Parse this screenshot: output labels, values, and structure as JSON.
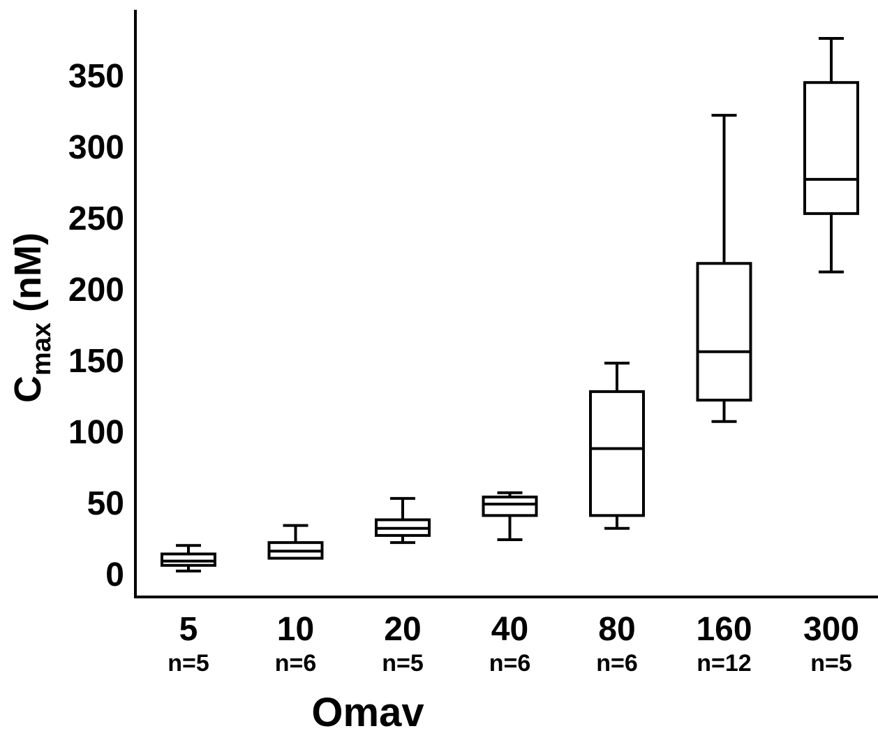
{
  "chart_data": {
    "type": "boxplot",
    "title": "",
    "ylabel": {
      "main": "C",
      "sub": "max",
      "unit": " (nM)"
    },
    "xlabel": "Omav",
    "ylim": [
      0,
      370
    ],
    "yticks": [
      0,
      50,
      100,
      150,
      200,
      250,
      300,
      350
    ],
    "grid": false,
    "legend": "none",
    "groups": [
      {
        "category": "5",
        "n_label": "n=5",
        "min": 2,
        "q1": 6,
        "median": 9,
        "q3": 14,
        "max": 20
      },
      {
        "category": "10",
        "n_label": "n=6",
        "min": 11,
        "q1": 11,
        "median": 16,
        "q3": 22,
        "max": 34
      },
      {
        "category": "20",
        "n_label": "n=5",
        "min": 22,
        "q1": 27,
        "median": 32,
        "q3": 38,
        "max": 53
      },
      {
        "category": "40",
        "n_label": "n=6",
        "min": 24,
        "q1": 41,
        "median": 49,
        "q3": 54,
        "max": 57
      },
      {
        "category": "80",
        "n_label": "n=6",
        "min": 32,
        "q1": 41,
        "median": 88,
        "q3": 128,
        "max": 148
      },
      {
        "category": "160",
        "n_label": "n=12",
        "min": 107,
        "q1": 122,
        "median": 156,
        "q3": 218,
        "max": 322
      },
      {
        "category": "300",
        "n_label": "n=5",
        "min": 212,
        "q1": 253,
        "median": 277,
        "q3": 345,
        "max": 376
      }
    ]
  },
  "colors": {
    "stroke": "#000000",
    "background": "#ffffff"
  }
}
